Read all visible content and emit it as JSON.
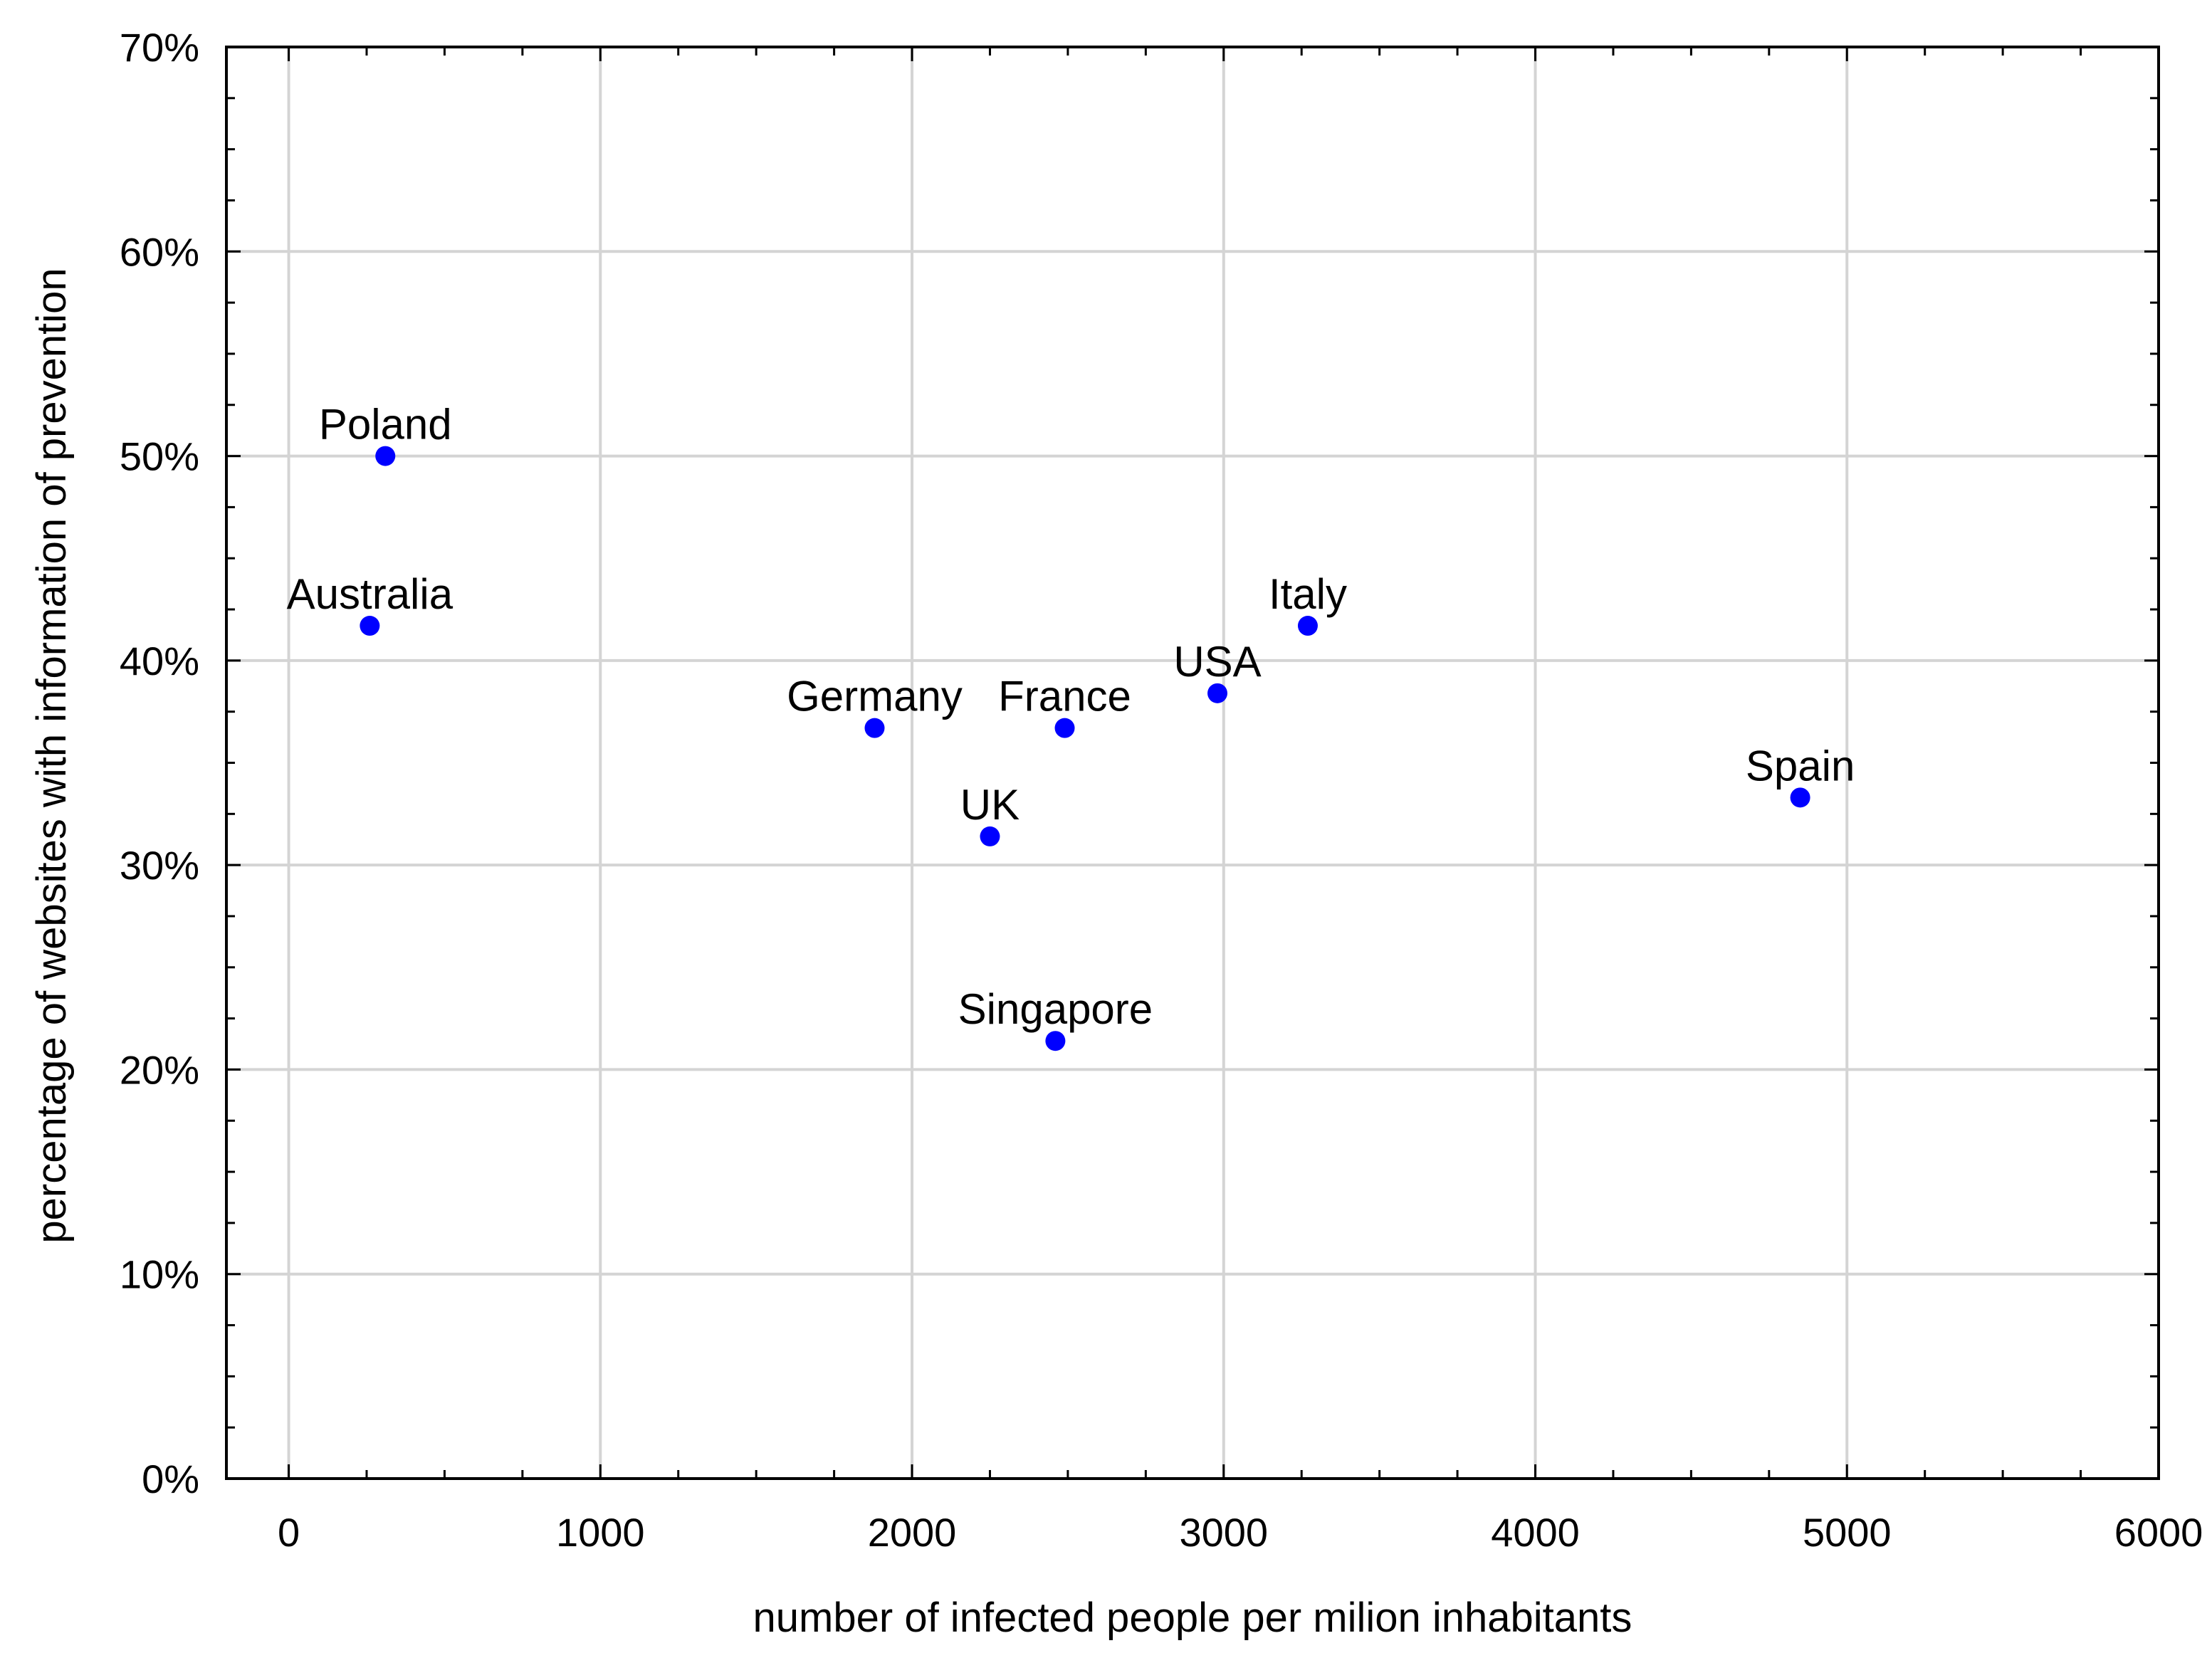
{
  "chart_data": {
    "type": "scatter",
    "title": "",
    "xlabel": "number of infected people per milion inhabitants",
    "ylabel": "percentage of websites with information of prevention",
    "xlim": [
      -200,
      6000
    ],
    "ylim": [
      0,
      0.7
    ],
    "x_ticks": [
      0,
      1000,
      2000,
      3000,
      4000,
      5000,
      6000
    ],
    "x_tick_labels": [
      "0",
      "1000",
      "2000",
      "3000",
      "4000",
      "5000",
      "6000"
    ],
    "y_ticks": [
      0,
      0.1,
      0.2,
      0.3,
      0.4,
      0.5,
      0.6,
      0.7
    ],
    "y_tick_labels": [
      "0%",
      "10%",
      "20%",
      "30%",
      "40%",
      "50%",
      "60%",
      "70%"
    ],
    "grid": true,
    "legend": "none",
    "marker_color": "#0000ff",
    "points": [
      {
        "label": "Poland",
        "x": 310,
        "y": 0.5
      },
      {
        "label": "Australia",
        "x": 260,
        "y": 0.417
      },
      {
        "label": "Germany",
        "x": 1880,
        "y": 0.367
      },
      {
        "label": "France",
        "x": 2490,
        "y": 0.367
      },
      {
        "label": "UK",
        "x": 2250,
        "y": 0.314
      },
      {
        "label": "Singapore",
        "x": 2460,
        "y": 0.214
      },
      {
        "label": "USA",
        "x": 2980,
        "y": 0.384
      },
      {
        "label": "Italy",
        "x": 3270,
        "y": 0.417
      },
      {
        "label": "Spain",
        "x": 4850,
        "y": 0.333
      }
    ]
  }
}
